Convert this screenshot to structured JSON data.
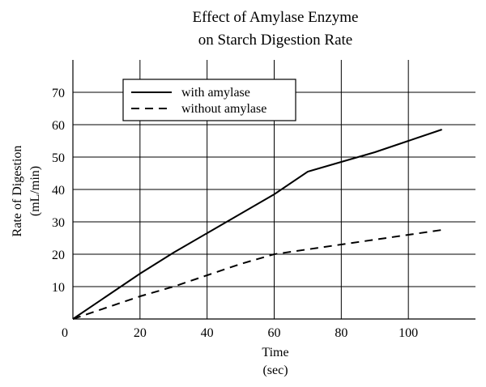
{
  "chart_data": {
    "type": "line",
    "title": [
      "Effect of Amylase Enzyme",
      "on Starch Digestion Rate"
    ],
    "xlabel": [
      "Time",
      "(sec)"
    ],
    "ylabel": [
      "Rate of Digestion",
      "(mL/min)"
    ],
    "xlim": [
      0,
      120
    ],
    "ylim": [
      0,
      80
    ],
    "x_ticks": [
      0,
      20,
      40,
      60,
      80,
      100
    ],
    "y_ticks": [
      0,
      10,
      20,
      30,
      40,
      50,
      60,
      70
    ],
    "grid": true,
    "legend_position": "top-left",
    "series": [
      {
        "name": "with amylase",
        "style": "solid",
        "color": "#000000",
        "x": [
          0,
          10,
          20,
          30,
          40,
          50,
          60,
          70,
          80,
          90,
          100,
          110
        ],
        "y": [
          0,
          7,
          14,
          20.5,
          26.5,
          32.5,
          38.5,
          45.5,
          48.5,
          51.5,
          55,
          58.5
        ]
      },
      {
        "name": "without amylase",
        "style": "dashed",
        "color": "#000000",
        "x": [
          0,
          10,
          20,
          30,
          40,
          50,
          60,
          70,
          80,
          90,
          100,
          110
        ],
        "y": [
          0,
          3.5,
          7,
          10,
          13.5,
          17,
          20,
          21.5,
          23,
          24.5,
          26,
          27.5
        ]
      }
    ]
  }
}
